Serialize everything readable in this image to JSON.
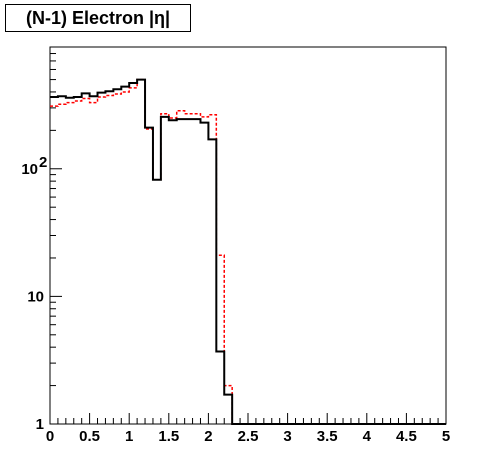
{
  "chart_data": {
    "type": "line",
    "title": "(N-1) Electron |η|",
    "xlabel": "",
    "ylabel": "",
    "xlim": [
      0,
      5
    ],
    "ylim": [
      1,
      900
    ],
    "yscale": "log",
    "grid": false,
    "x_ticks": [
      "0",
      "0.5",
      "1",
      "1.5",
      "2",
      "2.5",
      "3",
      "3.5",
      "4",
      "4.5",
      "5"
    ],
    "y_ticks": [
      {
        "value": 1,
        "label": "1"
      },
      {
        "value": 10,
        "label": "10"
      },
      {
        "value": 100,
        "label": "10",
        "exp": "2"
      }
    ],
    "bin_edges": [
      0,
      0.1,
      0.2,
      0.3,
      0.4,
      0.5,
      0.6,
      0.7,
      0.8,
      0.9,
      1.0,
      1.1,
      1.2,
      1.3,
      1.4,
      1.5,
      1.6,
      1.7,
      1.8,
      1.9,
      2.0,
      2.1,
      2.2,
      2.3,
      2.4,
      2.5,
      2.6,
      2.7,
      2.8,
      2.9,
      3.0,
      3.1,
      3.2,
      3.3,
      3.4,
      3.5,
      3.6,
      3.7,
      3.8,
      3.9,
      4.0,
      4.1,
      4.2,
      4.3,
      4.4,
      4.5,
      4.6,
      4.7,
      4.8,
      4.9,
      5.0
    ],
    "series": [
      {
        "color": "#000000",
        "style": "solid",
        "values": [
          365,
          370,
          360,
          365,
          390,
          370,
          395,
          405,
          420,
          440,
          470,
          500,
          210,
          82,
          255,
          240,
          245,
          245,
          245,
          230,
          170,
          3.7,
          1.7,
          0,
          0,
          0,
          0,
          0,
          0,
          0,
          0,
          0,
          0,
          0,
          0,
          0,
          0,
          0,
          0,
          0,
          0,
          0,
          0,
          0,
          0,
          0,
          0,
          0,
          0,
          0
        ]
      },
      {
        "color": "#ff0000",
        "style": "dashed",
        "values": [
          310,
          320,
          330,
          340,
          355,
          330,
          365,
          375,
          385,
          400,
          430,
          500,
          205,
          82,
          270,
          250,
          285,
          270,
          270,
          255,
          265,
          21,
          2.0,
          0,
          0,
          0,
          0,
          0,
          0,
          0,
          0,
          0,
          0,
          0,
          0,
          0,
          0,
          0,
          0,
          0,
          0,
          0,
          0,
          0,
          0,
          0,
          0,
          0,
          0,
          0
        ]
      }
    ]
  }
}
